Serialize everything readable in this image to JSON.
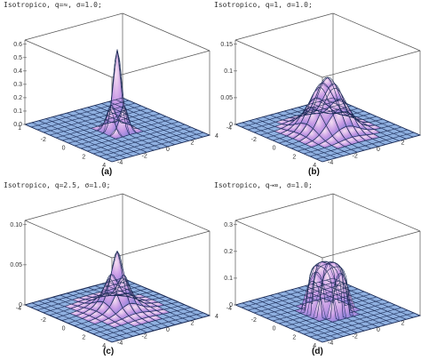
{
  "colors": {
    "floor": "#8fb0e0",
    "grid": "#1a2a55",
    "surface_top": "#f7dff2",
    "surface_mid": "#c99be6",
    "surface_edge": "#8a7fd8",
    "box": "#555555"
  },
  "panels": [
    {
      "title": "Isotropico, q=≈, σ=1.0;",
      "label": "(a)",
      "z_ticks": [
        "0.6",
        "0.5",
        "0.4",
        "0.3",
        "0.2",
        "0.1",
        "0.0"
      ],
      "front_ticks": [
        "-2",
        "0",
        "2",
        "4"
      ],
      "side_ticks": [
        "-4",
        "-2",
        "0",
        "2",
        "4"
      ],
      "left_tick": "1"
    },
    {
      "title": "Isotropico, q=1, σ=1.0;",
      "label": "(b)",
      "z_ticks": [
        "0.15",
        "0.1",
        "0.05",
        "0"
      ],
      "front_ticks": [
        "-2",
        "0",
        "2",
        "4"
      ],
      "side_ticks": [
        "-4",
        "-2",
        "0",
        "2",
        "4"
      ],
      "left_tick": "-4"
    },
    {
      "title": "Isotropico, q=2.5, σ=1.0;",
      "label": "(c)",
      "z_ticks": [
        "0.10",
        "0.05",
        "0"
      ],
      "front_ticks": [
        "-2",
        "0",
        "2",
        "4"
      ],
      "side_ticks": [
        "-4",
        "-2",
        "0",
        "2",
        "4"
      ],
      "left_tick": "-4"
    },
    {
      "title": "Isotropico, q→∞, σ=1.0;",
      "label": "(d)",
      "z_ticks": [
        "0.3",
        "0.2",
        "0.1",
        "0"
      ],
      "front_ticks": [
        "-2",
        "0",
        "2",
        "4"
      ],
      "side_ticks": [
        "-4",
        "-2",
        "0",
        "2",
        "4"
      ],
      "left_tick": "-4"
    }
  ]
}
